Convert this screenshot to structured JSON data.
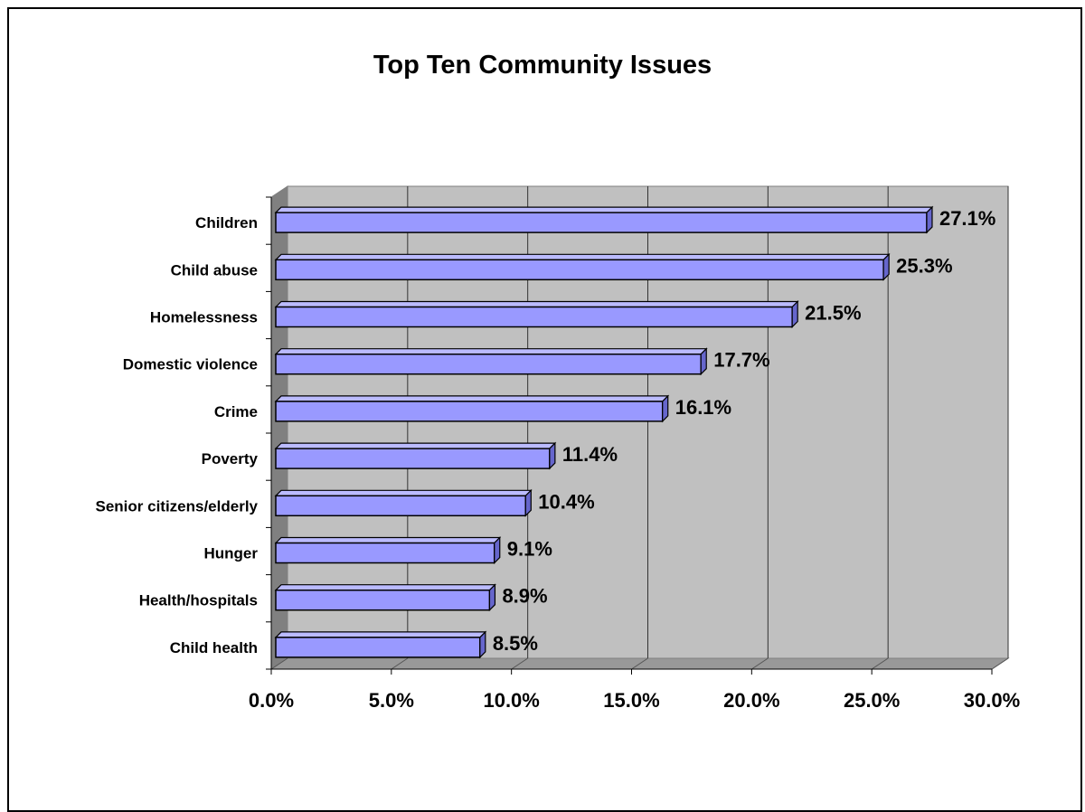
{
  "chart_data": {
    "type": "bar",
    "orientation": "horizontal",
    "title": "Top Ten Community Issues",
    "xlabel": "",
    "ylabel": "",
    "categories": [
      "Children",
      "Child abuse",
      "Homelessness",
      "Domestic violence",
      "Crime",
      "Poverty",
      "Senior citizens/elderly",
      "Hunger",
      "Health/hospitals",
      "Child health"
    ],
    "values": [
      27.1,
      25.3,
      21.5,
      17.7,
      16.1,
      11.4,
      10.4,
      9.1,
      8.9,
      8.5
    ],
    "value_labels": [
      "27.1%",
      "25.3%",
      "21.5%",
      "17.7%",
      "16.1%",
      "11.4%",
      "10.4%",
      "9.1%",
      "8.9%",
      "8.5%"
    ],
    "xlim": [
      0,
      30
    ],
    "x_ticks": [
      0,
      5,
      10,
      15,
      20,
      25,
      30
    ],
    "x_tick_labels": [
      "0.0%",
      "5.0%",
      "10.0%",
      "15.0%",
      "20.0%",
      "25.0%",
      "30.0%"
    ],
    "grid": true,
    "legend": "none",
    "colors": {
      "bar_face": "#9999ff",
      "bar_side": "#6666cc",
      "bar_top": "#bbbbff",
      "plot_wall": "#c0c0c0",
      "plot_floor": "#999999",
      "plot_side_wall": "#808080",
      "gridline": "#333333"
    }
  }
}
